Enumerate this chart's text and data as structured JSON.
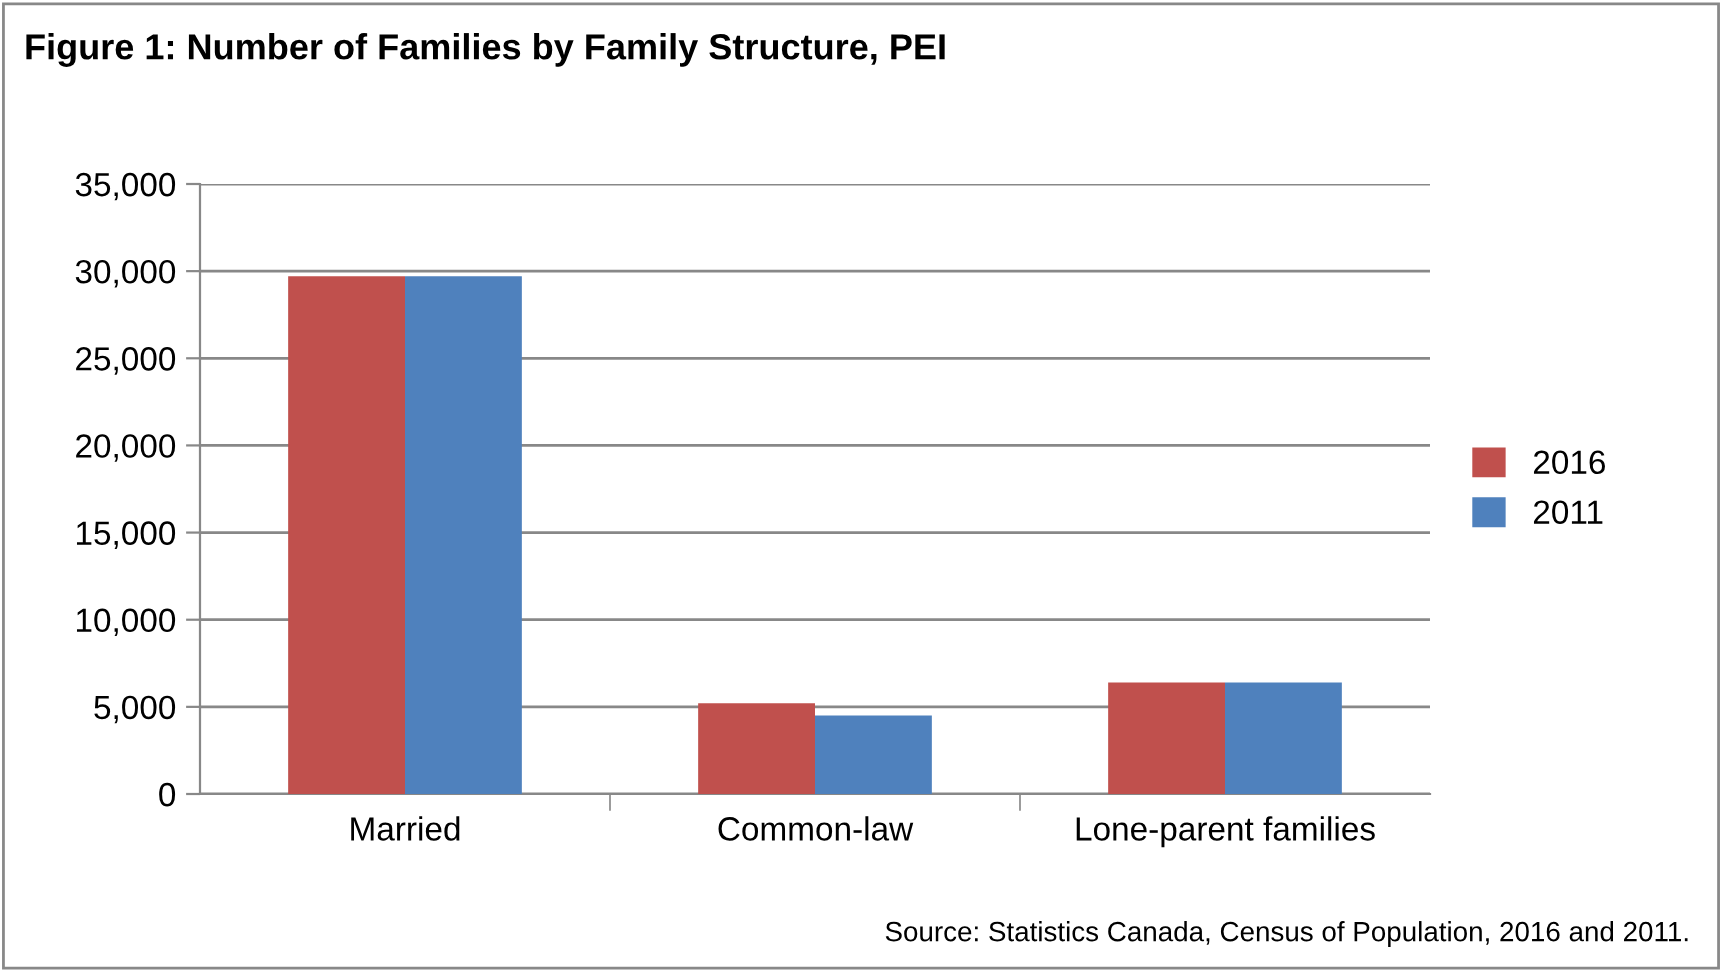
{
  "chart_data": {
    "type": "bar",
    "title": "Figure 1: Number of Families by Family Structure, PEI",
    "categories": [
      "Married",
      "Common-law",
      "Lone-parent families"
    ],
    "series": [
      {
        "name": "2016",
        "color": "#c0504d",
        "values": [
          29700,
          5200,
          6400
        ]
      },
      {
        "name": "2011",
        "color": "#4f81bd",
        "values": [
          29700,
          4500,
          6400
        ]
      }
    ],
    "ylim": [
      0,
      35000
    ],
    "yticks": [
      {
        "value": 0,
        "label": "0"
      },
      {
        "value": 5000,
        "label": "5,000"
      },
      {
        "value": 10000,
        "label": "10,000"
      },
      {
        "value": 15000,
        "label": "15,000"
      },
      {
        "value": 20000,
        "label": "20,000"
      },
      {
        "value": 25000,
        "label": "25,000"
      },
      {
        "value": 30000,
        "label": "30,000"
      },
      {
        "value": 35000,
        "label": "35,000"
      }
    ],
    "grid": "y",
    "legend": "right",
    "annotations": [
      "Source: Statistics Canada, Census of Population, 2016 and 2011."
    ]
  }
}
